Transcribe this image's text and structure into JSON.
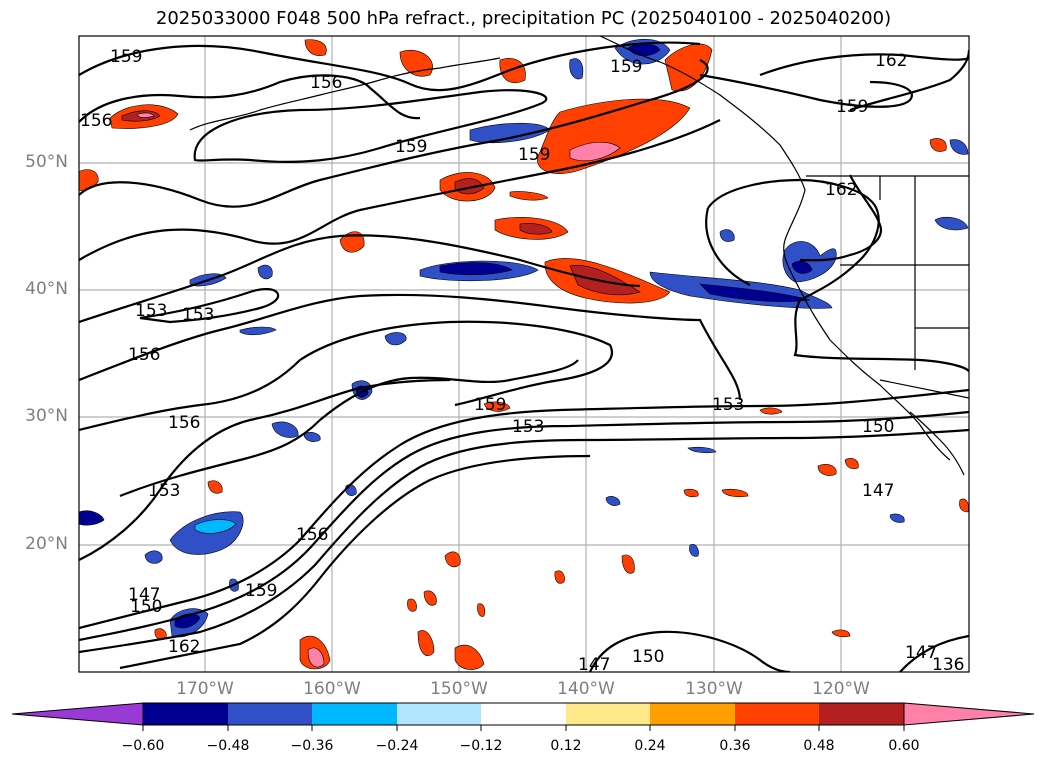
{
  "title": "2025033000 F048 500 hPa refract., precipitation PC (2025040100 - 2025040200)",
  "map": {
    "lat_labels": [
      "50°N",
      "40°N",
      "30°N",
      "20°N"
    ],
    "lon_labels": [
      "170°W",
      "160°W",
      "150°W",
      "140°W",
      "130°W",
      "120°W"
    ],
    "contour_labels": [
      "159",
      "156",
      "156",
      "159",
      "159",
      "162",
      "159",
      "162",
      "159",
      "153",
      "153",
      "156",
      "156",
      "153",
      "159",
      "153",
      "153",
      "150",
      "147",
      "147",
      "150",
      "159",
      "156",
      "162",
      "147",
      "150",
      "147",
      "136"
    ],
    "gridline_color": "#b0b0b0",
    "coastline_color": "#000000"
  },
  "colorbar": {
    "tick_labels": [
      "−0.60",
      "−0.48",
      "−0.36",
      "−0.24",
      "−0.12",
      "0.12",
      "0.24",
      "0.36",
      "0.48",
      "0.60"
    ],
    "colors": [
      "#9a3ad6",
      "#000090",
      "#3050c8",
      "#00b8ff",
      "#b0e4ff",
      "#ffffff",
      "#ffe88a",
      "#ffa000",
      "#ff4000",
      "#b22020",
      "#ff80a8"
    ]
  }
}
